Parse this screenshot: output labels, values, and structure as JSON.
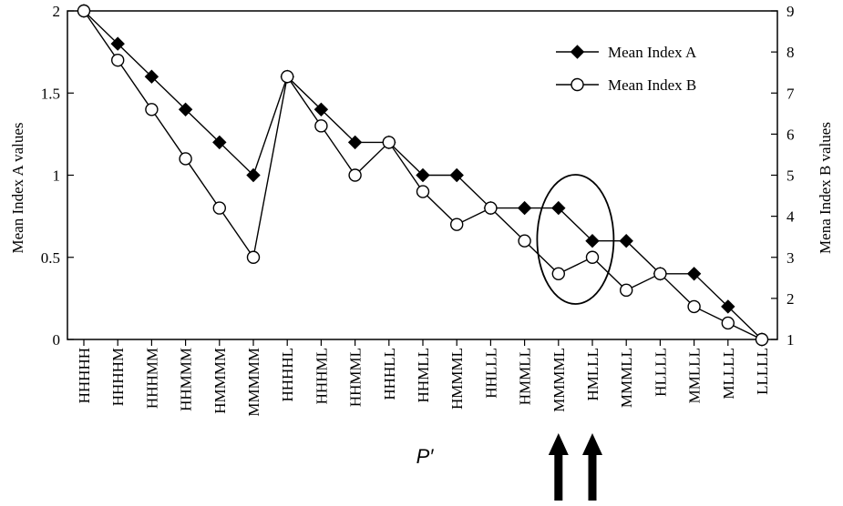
{
  "chart_data": {
    "type": "line",
    "categories": [
      "HHHHH",
      "HHHHM",
      "HHHMM",
      "HHMMM",
      "HMMMM",
      "MMMMM",
      "HHHHL",
      "HHHML",
      "HHMML",
      "HHHLL",
      "HHMLL",
      "HMMML",
      "HHLLL",
      "HMMLL",
      "MMMML",
      "HMLLL",
      "MMMLL",
      "HLLLL",
      "MMLLL",
      "MLLLL",
      "LLLLL"
    ],
    "xlabel": "P′",
    "ylabel_left": "Mean Index A values",
    "ylabel_right": "Mena Index B values",
    "ylim_left": [
      0,
      2
    ],
    "ylim_right": [
      1,
      9
    ],
    "yticks_left": [
      "0",
      "0.5",
      "1",
      "1.5",
      "2"
    ],
    "yticks_right": [
      "1",
      "2",
      "3",
      "4",
      "5",
      "6",
      "7",
      "8",
      "9"
    ],
    "series": [
      {
        "name": "Mean Index A",
        "axis": "left",
        "marker": "filled-diamond",
        "values": [
          2.0,
          1.8,
          1.6,
          1.4,
          1.2,
          1.0,
          1.6,
          1.4,
          1.2,
          1.2,
          1.0,
          1.0,
          0.8,
          0.8,
          0.8,
          0.6,
          0.6,
          0.4,
          0.4,
          0.2,
          0.0
        ]
      },
      {
        "name": "Mean Index B",
        "axis": "right",
        "marker": "open-circle",
        "values": [
          9.0,
          7.8,
          6.6,
          5.4,
          4.2,
          3.0,
          7.4,
          6.2,
          5.0,
          5.8,
          4.6,
          3.8,
          4.2,
          3.4,
          2.6,
          3.0,
          2.2,
          2.6,
          1.8,
          1.4,
          1.0
        ]
      }
    ],
    "legend_position": "top-right",
    "grid": false,
    "annotations": {
      "ellipse_around": [
        "MMMML",
        "HMLLL"
      ],
      "arrows_below": [
        "MMMML",
        "HMLLL"
      ]
    }
  }
}
